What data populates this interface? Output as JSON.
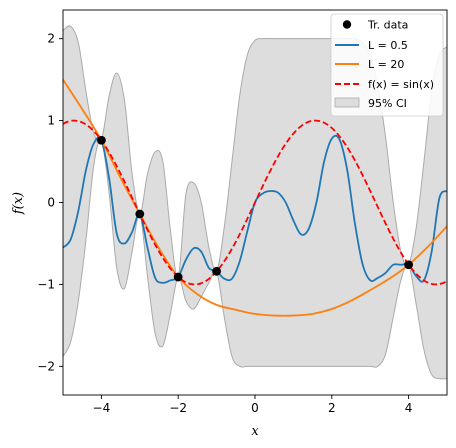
{
  "chart_data": {
    "type": "line",
    "xlabel": "x",
    "ylabel": "f(x)",
    "xlim": [
      -5,
      5
    ],
    "ylim": [
      -2.35,
      2.35
    ],
    "x_ticks": [
      -4,
      -2,
      0,
      2,
      4
    ],
    "y_ticks": [
      -2,
      -1,
      0,
      1,
      2
    ],
    "x_tick_labels": [
      "−4",
      "−2",
      "0",
      "2",
      "4"
    ],
    "y_tick_labels": [
      "−2",
      "−1",
      "0",
      "1",
      "2"
    ],
    "grid": false,
    "legend_position": "top-right",
    "training_data": {
      "name": "Tr. data",
      "color": "#000000",
      "x": [
        -4,
        -3,
        -2,
        -1,
        4
      ],
      "y": [
        0.76,
        -0.14,
        -0.91,
        -0.84,
        -0.76
      ]
    },
    "series": [
      {
        "name": "L = 0.5",
        "color": "#1f77b4",
        "style": "solid",
        "x": [
          -5,
          -4.8,
          -4.6,
          -4.4,
          -4.2,
          -4.0,
          -3.8,
          -3.6,
          -3.4,
          -3.2,
          -3.0,
          -2.8,
          -2.6,
          -2.4,
          -2.2,
          -2.0,
          -1.8,
          -1.6,
          -1.4,
          -1.2,
          -1.0,
          -0.8,
          -0.6,
          -0.4,
          -0.2,
          0.0,
          0.2,
          0.4,
          0.6,
          0.8,
          1.0,
          1.2,
          1.4,
          1.6,
          1.8,
          2.0,
          2.2,
          2.4,
          2.6,
          2.8,
          3.0,
          3.2,
          3.4,
          3.6,
          3.8,
          4.0,
          4.2,
          4.4,
          4.6,
          4.8,
          5.0
        ],
        "y": [
          -0.55,
          -0.45,
          -0.1,
          0.4,
          0.72,
          0.76,
          0.3,
          -0.38,
          -0.5,
          -0.36,
          -0.14,
          -0.55,
          -0.92,
          -0.98,
          -0.95,
          -0.91,
          -0.7,
          -0.56,
          -0.6,
          -0.8,
          -0.84,
          -0.93,
          -0.93,
          -0.72,
          -0.35,
          0.0,
          0.11,
          0.14,
          0.12,
          0.0,
          -0.22,
          -0.39,
          -0.32,
          0.0,
          0.5,
          0.78,
          0.77,
          0.4,
          -0.25,
          -0.75,
          -0.95,
          -0.92,
          -0.86,
          -0.76,
          -0.76,
          -0.76,
          -0.9,
          -0.95,
          -0.6,
          0.05,
          0.14
        ]
      },
      {
        "name": "L = 20",
        "color": "#ff7f0e",
        "style": "solid",
        "x": [
          -5,
          -4.5,
          -4,
          -3.5,
          -3,
          -2.5,
          -2,
          -1.5,
          -1,
          -0.5,
          0,
          0.5,
          1,
          1.5,
          2,
          2.5,
          3,
          3.5,
          4,
          4.5,
          5
        ],
        "y": [
          1.5,
          1.14,
          0.76,
          0.3,
          -0.14,
          -0.56,
          -0.91,
          -1.12,
          -1.25,
          -1.31,
          -1.36,
          -1.38,
          -1.38,
          -1.36,
          -1.3,
          -1.2,
          -1.07,
          -0.93,
          -0.76,
          -0.54,
          -0.29
        ]
      },
      {
        "name": "f(x) = sin(x)",
        "color": "#ff0000",
        "style": "dashed",
        "function": "sin",
        "samples": 200
      }
    ],
    "confidence_band": {
      "name": "95% CI",
      "fill": "#dddddd",
      "edge": "#aaaaaa",
      "x": [
        -5,
        -4.8,
        -4.6,
        -4.4,
        -4.2,
        -4.0,
        -3.8,
        -3.6,
        -3.4,
        -3.2,
        -3.0,
        -2.8,
        -2.6,
        -2.4,
        -2.2,
        -2.0,
        -1.8,
        -1.6,
        -1.4,
        -1.2,
        -1.0,
        -0.8,
        -0.6,
        -0.4,
        -0.2,
        0.0,
        0.2,
        0.4,
        0.6,
        0.8,
        1.0,
        1.2,
        1.4,
        1.6,
        1.8,
        2.0,
        2.2,
        2.4,
        2.6,
        2.8,
        3.0,
        3.2,
        3.4,
        3.6,
        3.8,
        4.0,
        4.2,
        4.4,
        4.6,
        4.8,
        5.0
      ],
      "upper": [
        2.1,
        2.15,
        1.95,
        1.35,
        0.85,
        0.76,
        1.3,
        1.58,
        1.25,
        0.35,
        -0.14,
        0.35,
        0.62,
        0.5,
        -0.35,
        -0.91,
        0.1,
        0.24,
        0.0,
        -0.55,
        -0.84,
        -0.3,
        0.5,
        1.3,
        1.8,
        1.98,
        2.0,
        2.0,
        2.0,
        2.0,
        2.0,
        2.0,
        2.0,
        2.0,
        2.0,
        2.0,
        2.0,
        2.0,
        2.0,
        1.95,
        1.8,
        1.4,
        0.8,
        0.0,
        -0.6,
        -0.76,
        -0.3,
        0.5,
        1.35,
        1.8,
        1.9
      ],
      "lower": [
        -1.88,
        -1.7,
        -1.2,
        -0.45,
        0.45,
        0.76,
        0.12,
        -0.8,
        -1.05,
        -0.6,
        -0.14,
        -0.9,
        -1.6,
        -1.75,
        -1.35,
        -0.91,
        -1.2,
        -1.3,
        -1.15,
        -0.98,
        -0.84,
        -1.4,
        -1.88,
        -2.0,
        -2.0,
        -2.0,
        -2.0,
        -2.0,
        -2.0,
        -2.0,
        -2.0,
        -2.0,
        -2.0,
        -2.0,
        -2.0,
        -2.0,
        -2.0,
        -2.0,
        -2.0,
        -2.0,
        -2.0,
        -2.0,
        -1.85,
        -1.4,
        -0.95,
        -0.76,
        -1.25,
        -1.8,
        -2.1,
        -2.15,
        -2.15
      ]
    }
  }
}
